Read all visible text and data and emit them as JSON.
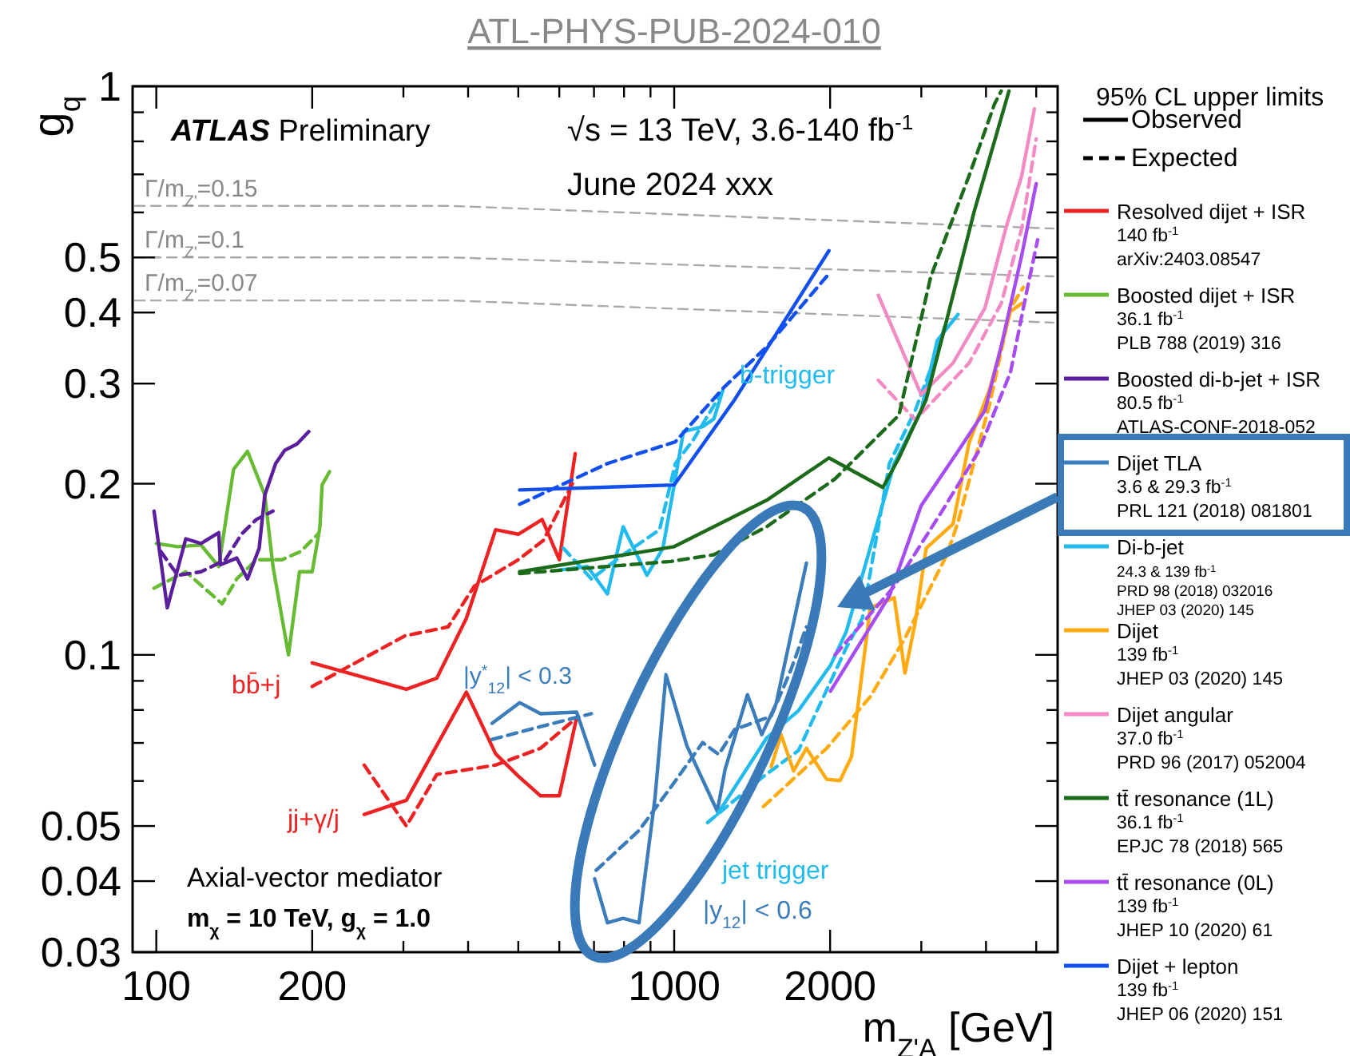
{
  "chart_data": {
    "type": "line",
    "title": "ATL-PHYS-PUB-2024-010",
    "xlabel": "m$_{Z'A}$ [GeV]",
    "ylabel": "g$_{q}$",
    "legend_title": "95% CL upper limits",
    "legend": "right",
    "log": "xy",
    "xlim": [
      90,
      5500
    ],
    "ylim": [
      0.03,
      1
    ],
    "xticks": [
      100,
      200,
      {
        "value": 300,
        "label": null
      },
      {
        "value": 400,
        "label": null
      },
      {
        "value": 500,
        "label": null
      },
      {
        "value": 600,
        "label": null
      },
      {
        "value": 700,
        "label": null
      },
      {
        "value": 800,
        "label": null
      },
      {
        "value": 900,
        "label": null
      },
      1000,
      2000,
      {
        "value": 3000,
        "label": null
      },
      {
        "value": 4000,
        "label": null
      },
      {
        "value": 5000,
        "label": null
      }
    ],
    "yticks": [
      0.03,
      0.04,
      0.05,
      {
        "value": 0.06,
        "label": null
      },
      {
        "value": 0.07,
        "label": null
      },
      {
        "value": 0.08,
        "label": null
      },
      {
        "value": 0.09,
        "label": null
      },
      0.1,
      0.2,
      0.3,
      0.4,
      0.5,
      {
        "value": 0.6,
        "label": null
      },
      {
        "value": 0.7,
        "label": null
      },
      {
        "value": 0.8,
        "label": null
      },
      {
        "value": 0.9,
        "label": null
      },
      1
    ],
    "annotations": [
      "ATLAS Preliminary",
      "√s = 13 TeV, 3.6-140 fb$^{-1}$",
      "June 2024 xxx",
      "Axial-vector mediator",
      "m$_{χ}$ = 10 TeV, g$_{χ}$ = 1.0",
      "b-trigger",
      "jet trigger",
      "|y$^{*}$$_{12}$| < 0.3",
      "|y$_{12}$| < 0.6",
      "bb̄+j",
      "jj+γ/j"
    ],
    "series": [
      {
        "name": "Observed",
        "color": "#000000",
        "line_style": "solid"
      },
      {
        "name": "Expected",
        "color": "#000000",
        "line_style": "dashed"
      },
      {
        "name": "Γ/m$_{Z'}$=0.15",
        "color": "#aaaaaa",
        "line_style": "dashed",
        "x": [
          91,
          370,
          5400
        ],
        "values": [
          0.616,
          0.616,
          0.562
        ]
      },
      {
        "name": "Γ/m$_{Z'}$=0.1",
        "color": "#aaaaaa",
        "line_style": "dashed",
        "x": [
          91,
          370,
          5400
        ],
        "values": [
          0.5,
          0.5,
          0.463
        ]
      },
      {
        "name": "Γ/m$_{Z'}$=0.07",
        "color": "#aaaaaa",
        "line_style": "dashed",
        "x": [
          91,
          370,
          5400
        ],
        "values": [
          0.42,
          0.42,
          0.384
        ]
      },
      {
        "name": "Resolved dijet + ISR\n140 fb$^{-1}$\narXiv:2403.08547",
        "color": "#ee2222",
        "line_style": "solid",
        "x": [
          200,
          304,
          348,
          397,
          452,
          500,
          556,
          600,
          644
        ],
        "values": [
          0.0968,
          0.087,
          0.091,
          0.116,
          0.166,
          0.163,
          0.173,
          0.147,
          0.226
        ]
      },
      {
        "color": "#ee2222",
        "line_style": "dashed",
        "x": [
          200,
          302,
          366,
          411,
          500,
          559,
          636
        ],
        "values": [
          0.088,
          0.108,
          0.112,
          0.132,
          0.147,
          0.159,
          0.2
        ]
      },
      {
        "color": "#ee2222",
        "line_style": "solid",
        "x": [
          252,
          304,
          397,
          452,
          500,
          552,
          600,
          648
        ],
        "values": [
          0.0524,
          0.0555,
          0.086,
          0.067,
          0.0612,
          0.0565,
          0.0565,
          0.0775
        ]
      },
      {
        "color": "#ee2222",
        "line_style": "dashed",
        "x": [
          252,
          304,
          348,
          452,
          552,
          648
        ],
        "values": [
          0.064,
          0.05,
          0.0616,
          0.064,
          0.0685,
          0.0775
        ]
      },
      {
        "name": "Boosted dijet + ISR\n36.1 fb$^{-1}$\nPLB 788 (2019) 316",
        "color": "#66bb33",
        "line_style": "solid",
        "x": [
          100,
          110,
          122,
          132,
          141,
          150,
          162,
          168,
          180,
          189,
          200,
          207,
          209,
          216
        ],
        "values": [
          0.157,
          0.155,
          0.156,
          0.143,
          0.212,
          0.228,
          0.191,
          0.143,
          0.1,
          0.14,
          0.14,
          0.168,
          0.199,
          0.21
        ]
      },
      {
        "color": "#66bb33",
        "line_style": "dashed",
        "x": [
          99,
          114,
          134,
          143,
          156,
          175,
          190,
          205
        ],
        "values": [
          0.131,
          0.14,
          0.123,
          0.136,
          0.147,
          0.147,
          0.152,
          0.163
        ]
      },
      {
        "name": "Boosted di-b-jet + ISR\n80.5 fb$^{-1}$\nATLAS-CONF-2018-052",
        "color": "#5b1f9e",
        "line_style": "solid",
        "x": [
          99,
          105,
          114,
          122,
          132,
          133,
          143,
          150,
          158,
          162,
          170,
          177,
          187,
          197
        ],
        "values": [
          0.179,
          0.121,
          0.16,
          0.157,
          0.164,
          0.144,
          0.148,
          0.136,
          0.154,
          0.191,
          0.217,
          0.229,
          0.235,
          0.247
        ]
      },
      {
        "color": "#5b1f9e",
        "line_style": "dashed",
        "x": [
          102,
          110,
          122,
          136,
          146,
          156,
          168
        ],
        "values": [
          0.152,
          0.138,
          0.14,
          0.147,
          0.163,
          0.173,
          0.179
        ]
      },
      {
        "name": "Dijet TLA\n3.6 & 29.3 fb$^{-1}$\nPRL 121 (2018) 081801",
        "color": "#3b7dbb",
        "line_style": "solid",
        "x": [
          445,
          503,
          552,
          648,
          702
        ],
        "values": [
          0.0758,
          0.0824,
          0.0788,
          0.0793,
          0.064
        ]
      },
      {
        "color": "#3b7dbb",
        "line_style": "dashed",
        "x": [
          445,
          552,
          692
        ],
        "values": [
          0.071,
          0.0748,
          0.0788
        ]
      },
      {
        "color": "#3b7dbb",
        "line_style": "solid",
        "x": [
          702,
          743,
          797,
          855,
          918,
          964,
          1058,
          1211,
          1254,
          1385,
          1476,
          1573,
          1800
        ],
        "values": [
          0.0404,
          0.0338,
          0.0344,
          0.0338,
          0.0559,
          0.0923,
          0.0692,
          0.0531,
          0.0629,
          0.0851,
          0.0724,
          0.082,
          0.145
        ]
      },
      {
        "color": "#3b7dbb",
        "line_style": "dashed",
        "x": [
          707,
          855,
          985,
          1135,
          1219,
          1308,
          1539,
          1677,
          1800
        ],
        "values": [
          0.0418,
          0.0491,
          0.0585,
          0.0701,
          0.0668,
          0.0739,
          0.078,
          0.0937,
          0.112
        ]
      },
      {
        "name": "Di-b-jet\n24.3 & 139 fb$^{-1}$\nPRD 98 (2018) 032016\nJHEP 03 (2020) 145",
        "color": "#22bbee",
        "line_style": "solid",
        "x": [
          600,
          680,
          743,
          797,
          886,
          951,
          1000,
          1042,
          1135,
          1193,
          1240
        ],
        "values": [
          0.141,
          0.143,
          0.128,
          0.168,
          0.138,
          0.154,
          0.199,
          0.247,
          0.252,
          0.26,
          0.291
        ]
      },
      {
        "color": "#22bbee",
        "line_style": "dashed",
        "x": [
          611,
          692,
          797,
          937,
          1005,
          1089,
          1240
        ],
        "values": [
          0.154,
          0.136,
          0.15,
          0.166,
          0.217,
          0.239,
          0.291
        ]
      },
      {
        "color": "#22bbee",
        "line_style": "solid",
        "x": [
          1211,
          1508,
          1738,
          2003,
          2150,
          2660,
          2998,
          3220,
          3531
        ],
        "values": [
          0.0524,
          0.0714,
          0.0798,
          0.0958,
          0.11,
          0.217,
          0.269,
          0.357,
          0.397
        ]
      },
      {
        "color": "#22bbee",
        "line_style": "dashed",
        "x": [
          1160,
          1476,
          1738,
          2150,
          2308,
          2603,
          2920,
          3220,
          3361
        ],
        "values": [
          0.0507,
          0.0608,
          0.0679,
          0.103,
          0.116,
          0.217,
          0.269,
          0.342,
          0.389
        ]
      },
      {
        "name": "Dijet\n139 fb$^{-1}$\nJHEP 03 (2020) 145",
        "color": "#ffaa11",
        "line_style": "solid",
        "x": [
          1540,
          1608,
          1700,
          1800,
          1970,
          2090,
          2200,
          2391,
          2660,
          2790,
          2920,
          3065,
          3455,
          3710,
          4069,
          4280,
          4460,
          4688
        ],
        "values": [
          0.0636,
          0.0724,
          0.0625,
          0.0685,
          0.0604,
          0.0601,
          0.0662,
          0.121,
          0.126,
          0.0929,
          0.114,
          0.154,
          0.17,
          0.236,
          0.294,
          0.348,
          0.402,
          0.415
        ]
      },
      {
        "color": "#ffaa11",
        "line_style": "dashed",
        "x": [
          1487,
          1970,
          2391,
          2790,
          3361,
          3531,
          4069,
          4460,
          4720
        ],
        "values": [
          0.0541,
          0.0685,
          0.0844,
          0.107,
          0.15,
          0.171,
          0.277,
          0.407,
          0.443
        ]
      },
      {
        "name": "Dijet angular\n37.0 fb$^{-1}$\nPRD 96 (2017) 052004",
        "color": "#f28ac4",
        "line_style": "solid",
        "x": [
          2478,
          2998,
          3455,
          3980,
          4367,
          4688,
          4960
        ],
        "values": [
          0.429,
          0.287,
          0.326,
          0.407,
          0.562,
          0.696,
          0.913
        ]
      },
      {
        "color": "#f28ac4",
        "line_style": "dashed",
        "x": [
          2478,
          2920,
          3710,
          4280,
          4688,
          5000
        ],
        "values": [
          0.304,
          0.259,
          0.326,
          0.415,
          0.562,
          0.808
        ]
      },
      {
        "name": "tt̄ resonance (1L)\n36.1 fb$^{-1}$\nEPJC 78 (2018) 565",
        "color": "#1b6b1b",
        "line_style": "solid",
        "x": [
          503,
          1000,
          1508,
          1990,
          2530,
          2716,
          3065,
          3361,
          3791,
          4430
        ],
        "values": [
          0.14,
          0.155,
          0.187,
          0.222,
          0.197,
          0.222,
          0.281,
          0.389,
          0.6,
          0.981
        ]
      },
      {
        "color": "#1b6b1b",
        "line_style": "dashed",
        "x": [
          503,
          985,
          1193,
          1508,
          2045,
          2716,
          3130,
          3710,
          4155,
          4280
        ],
        "values": [
          0.139,
          0.146,
          0.15,
          0.168,
          0.204,
          0.264,
          0.463,
          0.696,
          0.931,
          0.981
        ]
      },
      {
        "name": "tt̄ resonance (0L)\n139 fb$^{-1}$\nJHEP 10 (2020) 61",
        "color": "#a64cf0",
        "line_style": "solid",
        "x": [
          2003,
          2603,
          2998,
          3531,
          3980,
          4280,
          4688,
          5000
        ],
        "values": [
          0.0863,
          0.127,
          0.183,
          0.228,
          0.269,
          0.349,
          0.504,
          0.674
        ]
      },
      {
        "color": "#a64cf0",
        "line_style": "dashed",
        "x": [
          2045,
          2660,
          3290,
          3870,
          4460,
          4790,
          5032
        ],
        "values": [
          0.1,
          0.132,
          0.179,
          0.228,
          0.314,
          0.434,
          0.537
        ]
      },
      {
        "name": "Dijet + lepton\n139 fb$^{-1}$\nJHEP 06 (2020) 151",
        "color": "#1150ee",
        "line_style": "solid",
        "x": [
          503,
          1000,
          1308,
          1990
        ],
        "values": [
          0.195,
          0.199,
          0.281,
          0.514
        ]
      },
      {
        "color": "#1150ee",
        "line_style": "dashed",
        "x": [
          503,
          743,
          1005,
          1250,
          1508,
          1970
        ],
        "values": [
          0.184,
          0.217,
          0.237,
          0.296,
          0.348,
          0.463
        ]
      }
    ]
  }
}
